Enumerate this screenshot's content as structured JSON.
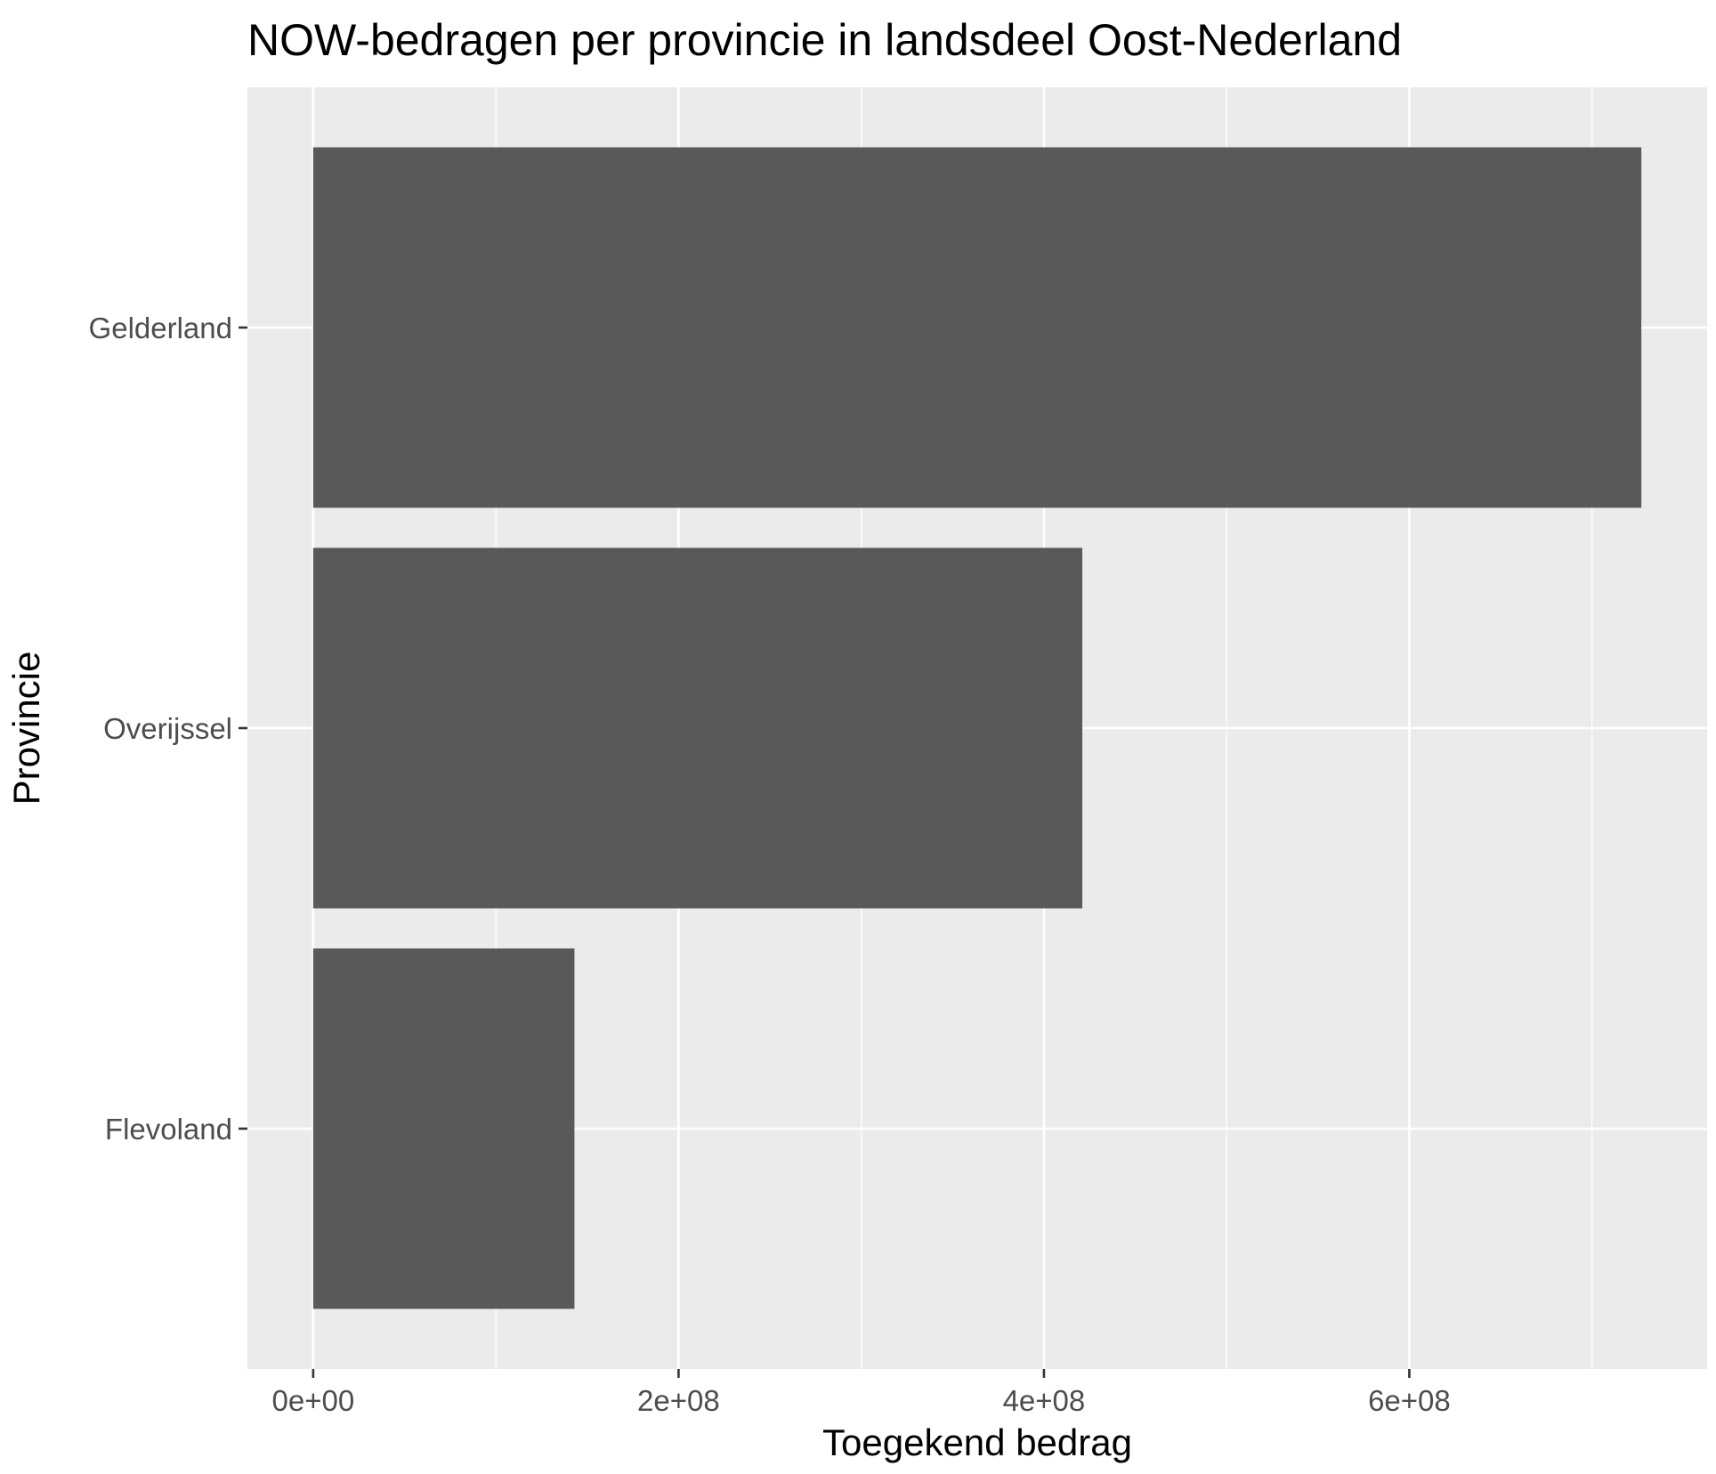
{
  "chart_data": {
    "type": "bar",
    "orientation": "horizontal",
    "title": "NOW-bedragen per provincie in landsdeel Oost-Nederland",
    "xlabel": "Toegekend bedrag",
    "ylabel": "Provincie",
    "categories": [
      "Gelderland",
      "Overijssel",
      "Flevoland"
    ],
    "values": [
      727000000,
      421000000,
      143000000
    ],
    "xlim": [
      -36000000,
      763000000
    ],
    "xticks": [
      0,
      200000000,
      400000000,
      600000000
    ],
    "xtick_labels": [
      "0e+00",
      "2e+08",
      "4e+08",
      "6e+08"
    ],
    "grid": true,
    "legend": "none",
    "colors": {
      "panel_background": "#ebebeb",
      "grid": "#ffffff",
      "bar_fill": "#595959",
      "tick_text": "#4d4d4d",
      "tick_mark": "#333333",
      "title_text": "#000000"
    }
  }
}
